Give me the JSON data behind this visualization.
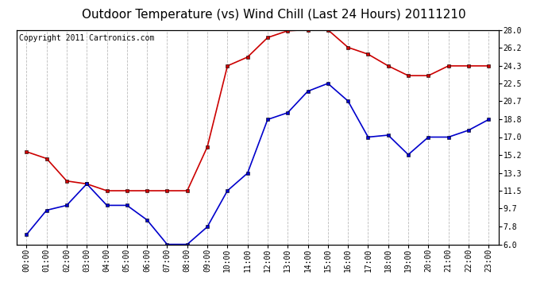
{
  "title": "Outdoor Temperature (vs) Wind Chill (Last 24 Hours) 20111210",
  "copyright": "Copyright 2011 Cartronics.com",
  "hours": [
    "00:00",
    "01:00",
    "02:00",
    "03:00",
    "04:00",
    "05:00",
    "06:00",
    "07:00",
    "08:00",
    "09:00",
    "10:00",
    "11:00",
    "12:00",
    "13:00",
    "14:00",
    "15:00",
    "16:00",
    "17:00",
    "18:00",
    "19:00",
    "20:00",
    "21:00",
    "22:00",
    "23:00"
  ],
  "outdoor_temp": [
    15.5,
    14.8,
    12.5,
    12.2,
    11.5,
    11.5,
    11.5,
    11.5,
    11.5,
    16.0,
    24.3,
    25.2,
    27.2,
    27.9,
    28.0,
    28.0,
    26.2,
    25.5,
    24.3,
    23.3,
    23.3,
    24.3,
    24.3,
    24.3
  ],
  "wind_chill": [
    7.0,
    9.5,
    10.0,
    12.2,
    10.0,
    10.0,
    8.5,
    6.0,
    6.0,
    7.8,
    11.5,
    13.3,
    18.8,
    19.5,
    21.7,
    22.5,
    20.7,
    17.0,
    17.2,
    15.2,
    17.0,
    17.0,
    17.7,
    18.8
  ],
  "temp_color": "#cc0000",
  "wind_color": "#0000cc",
  "bg_color": "#ffffff",
  "grid_color": "#bbbbbb",
  "ylim": [
    6.0,
    28.0
  ],
  "yticks": [
    6.0,
    7.8,
    9.7,
    11.5,
    13.3,
    15.2,
    17.0,
    18.8,
    20.7,
    22.5,
    24.3,
    26.2,
    28.0
  ],
  "title_fontsize": 11,
  "copyright_fontsize": 7,
  "tick_fontsize": 7,
  "markersize": 3,
  "linewidth": 1.2
}
